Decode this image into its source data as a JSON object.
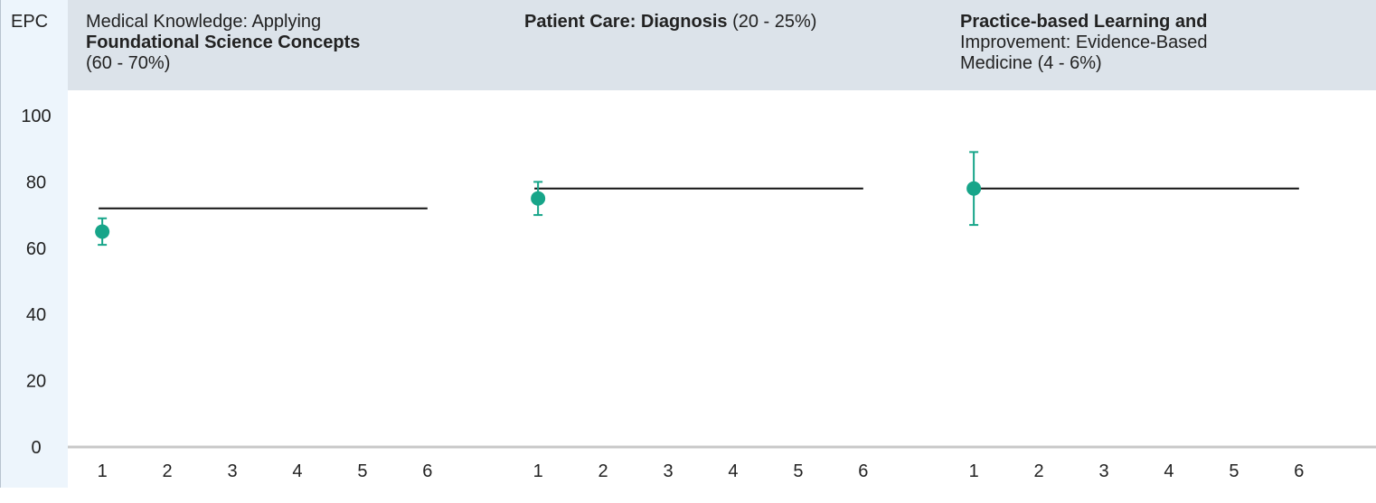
{
  "axis": {
    "label": "EPC",
    "ylim": [
      0,
      100
    ],
    "yticks": [
      0,
      20,
      40,
      60,
      80,
      100
    ]
  },
  "chart_data": [
    {
      "type": "scatter",
      "title_lines": [
        [
          {
            "text": "Medical Knowledge: Applying",
            "bold": false
          }
        ],
        [
          {
            "text": "Foundational Science Concepts",
            "bold": true
          }
        ],
        [
          {
            "text": "(60 - 70%)",
            "bold": false
          }
        ]
      ],
      "xlim": [
        0.47,
        7.17
      ],
      "xticks": [
        1,
        2,
        3,
        4,
        5,
        6
      ],
      "points": [
        {
          "x": 1,
          "y": 65,
          "error": 4
        }
      ],
      "reference": 72,
      "color": "#17a589"
    },
    {
      "type": "scatter",
      "title_lines": [
        [
          {
            "text": "Patient Care: Diagnosis",
            "bold": true
          },
          {
            "text": " (20 - 25%)",
            "bold": false
          }
        ]
      ],
      "xlim": [
        0.47,
        7.17
      ],
      "xticks": [
        1,
        2,
        3,
        4,
        5,
        6
      ],
      "points": [
        {
          "x": 1,
          "y": 75,
          "error": 5
        }
      ],
      "reference": 78,
      "color": "#17a589"
    },
    {
      "type": "scatter",
      "title_lines": [
        [
          {
            "text": "Practice-based Learning and",
            "bold": true
          }
        ],
        [
          {
            "text": "Improvement: Evidence-Based",
            "bold": false
          }
        ],
        [
          {
            "text": "Medicine (4 - 6%)",
            "bold": false
          }
        ]
      ],
      "xlim": [
        0.47,
        7.17
      ],
      "xticks": [
        1,
        2,
        3,
        4,
        5,
        6
      ],
      "points": [
        {
          "x": 1,
          "y": 78,
          "error": 11
        }
      ],
      "reference": 78,
      "color": "#17a589"
    }
  ]
}
